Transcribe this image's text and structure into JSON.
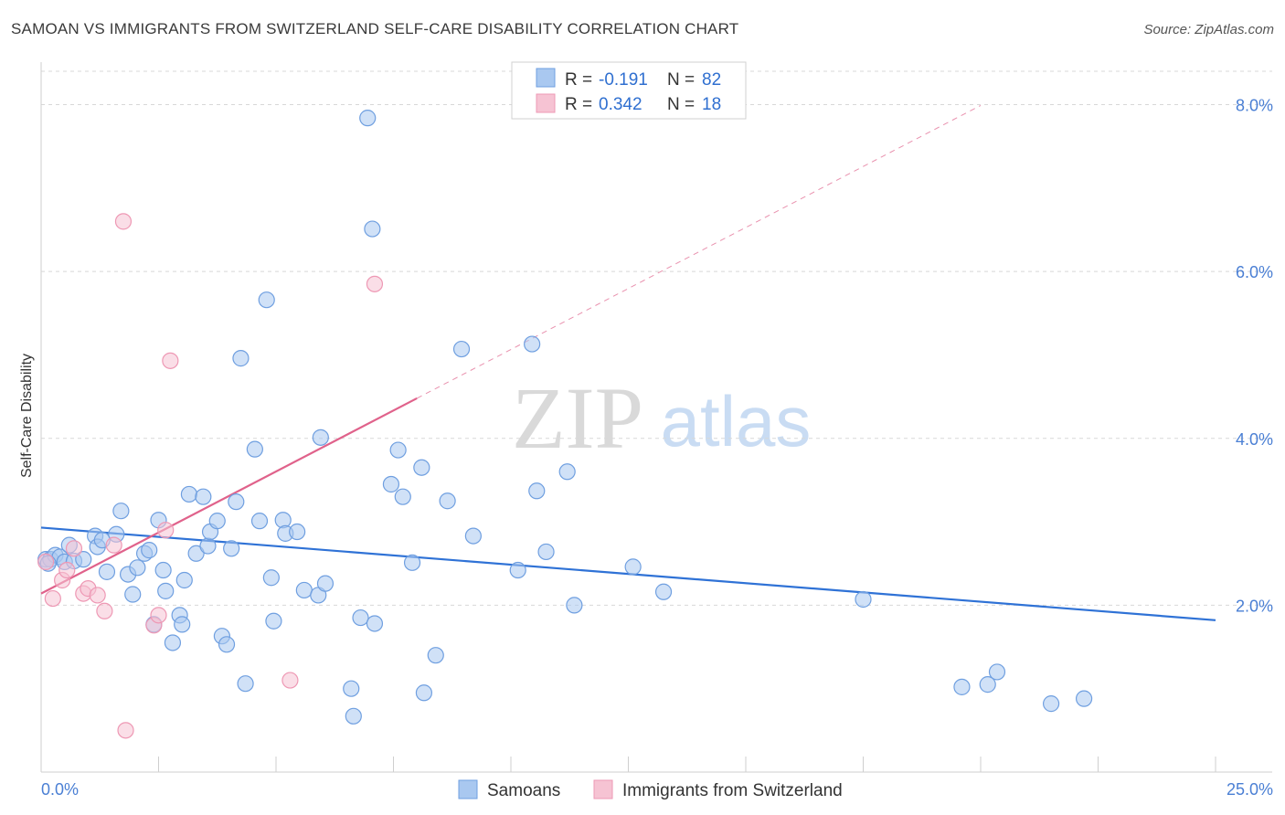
{
  "title": "SAMOAN VS IMMIGRANTS FROM SWITZERLAND SELF-CARE DISABILITY CORRELATION CHART",
  "source": "Source: ZipAtlas.com",
  "watermark": {
    "zip": "ZIP",
    "atlas": "atlas"
  },
  "colors": {
    "samoans_fill": "#a9c8f0",
    "samoans_stroke": "#6f9fe0",
    "samoans_line": "#2f72d6",
    "swiss_fill": "#f6c3d3",
    "swiss_stroke": "#ee98b4",
    "swiss_line": "#e0628b",
    "tick_label": "#4a7fd4",
    "grid": "#d8d8d8"
  },
  "legend": {
    "rows": [
      {
        "r_label": "R =",
        "r_value": "-0.191",
        "n_label": "N =",
        "n_value": "82"
      },
      {
        "r_label": "R =",
        "r_value": "0.342",
        "n_label": "N =",
        "n_value": "18"
      }
    ]
  },
  "chart_data": {
    "type": "scatter",
    "title": "SAMOAN VS IMMIGRANTS FROM SWITZERLAND SELF-CARE DISABILITY CORRELATION CHART",
    "xlabel": "",
    "ylabel": "Self-Care Disability",
    "xlim": [
      0,
      25
    ],
    "ylim": [
      0,
      8.4
    ],
    "x_tick_labels": [
      "0.0%",
      "25.0%"
    ],
    "y_ticks": [
      2,
      4,
      6,
      8
    ],
    "y_tick_labels": [
      "2.0%",
      "4.0%",
      "6.0%",
      "8.0%"
    ],
    "grid": true,
    "legend_position": "top-center",
    "series": [
      {
        "name": "Samoans",
        "points": [
          [
            0.1,
            2.55
          ],
          [
            0.2,
            2.55
          ],
          [
            0.3,
            2.6
          ],
          [
            0.4,
            2.58
          ],
          [
            0.5,
            2.52
          ],
          [
            0.6,
            2.72
          ],
          [
            0.7,
            2.53
          ],
          [
            0.9,
            2.55
          ],
          [
            1.15,
            2.83
          ],
          [
            1.2,
            2.7
          ],
          [
            1.4,
            2.4
          ],
          [
            1.6,
            2.85
          ],
          [
            1.7,
            3.13
          ],
          [
            1.85,
            2.37
          ],
          [
            1.95,
            2.13
          ],
          [
            2.05,
            2.45
          ],
          [
            2.2,
            2.62
          ],
          [
            2.3,
            2.66
          ],
          [
            2.4,
            1.77
          ],
          [
            2.5,
            3.02
          ],
          [
            2.6,
            2.42
          ],
          [
            2.65,
            2.17
          ],
          [
            2.8,
            1.55
          ],
          [
            2.95,
            1.88
          ],
          [
            3.05,
            2.3
          ],
          [
            3.15,
            3.33
          ],
          [
            3.3,
            2.62
          ],
          [
            3.45,
            3.3
          ],
          [
            3.55,
            2.71
          ],
          [
            3.6,
            2.88
          ],
          [
            3.75,
            3.01
          ],
          [
            3.85,
            1.63
          ],
          [
            3.95,
            1.53
          ],
          [
            4.05,
            2.68
          ],
          [
            4.15,
            3.24
          ],
          [
            4.25,
            4.96
          ],
          [
            4.35,
            1.06
          ],
          [
            4.55,
            3.87
          ],
          [
            4.65,
            3.01
          ],
          [
            4.8,
            5.66
          ],
          [
            4.9,
            2.33
          ],
          [
            4.95,
            1.81
          ],
          [
            5.15,
            3.02
          ],
          [
            5.2,
            2.86
          ],
          [
            5.45,
            2.88
          ],
          [
            5.6,
            2.18
          ],
          [
            5.9,
            2.12
          ],
          [
            5.95,
            4.01
          ],
          [
            6.05,
            2.26
          ],
          [
            6.6,
            1.0
          ],
          [
            6.65,
            0.67
          ],
          [
            6.8,
            1.85
          ],
          [
            6.95,
            7.84
          ],
          [
            7.05,
            6.51
          ],
          [
            7.1,
            1.78
          ],
          [
            7.45,
            3.45
          ],
          [
            7.6,
            3.86
          ],
          [
            7.7,
            3.3
          ],
          [
            7.9,
            2.51
          ],
          [
            8.1,
            3.65
          ],
          [
            8.15,
            0.95
          ],
          [
            8.4,
            1.4
          ],
          [
            8.65,
            3.25
          ],
          [
            8.95,
            5.07
          ],
          [
            9.2,
            2.83
          ],
          [
            10.15,
            2.42
          ],
          [
            10.45,
            5.13
          ],
          [
            10.55,
            3.37
          ],
          [
            10.75,
            2.64
          ],
          [
            11.2,
            3.6
          ],
          [
            11.35,
            2.0
          ],
          [
            12.6,
            2.46
          ],
          [
            13.25,
            2.16
          ],
          [
            17.5,
            2.07
          ],
          [
            19.6,
            1.02
          ],
          [
            20.15,
            1.05
          ],
          [
            20.35,
            1.2
          ],
          [
            21.5,
            0.82
          ],
          [
            22.2,
            0.88
          ],
          [
            0.15,
            2.5
          ],
          [
            1.3,
            2.78
          ],
          [
            3.0,
            1.77
          ]
        ]
      },
      {
        "name": "Immigrants from Switzerland",
        "points": [
          [
            0.1,
            2.52
          ],
          [
            0.25,
            2.08
          ],
          [
            0.45,
            2.3
          ],
          [
            0.55,
            2.42
          ],
          [
            0.7,
            2.68
          ],
          [
            0.9,
            2.14
          ],
          [
            1.0,
            2.2
          ],
          [
            1.2,
            2.12
          ],
          [
            1.35,
            1.93
          ],
          [
            1.55,
            2.72
          ],
          [
            1.75,
            6.6
          ],
          [
            1.8,
            0.5
          ],
          [
            2.4,
            1.76
          ],
          [
            2.5,
            1.88
          ],
          [
            2.65,
            2.9
          ],
          [
            2.75,
            4.93
          ],
          [
            5.3,
            1.1
          ],
          [
            7.1,
            5.85
          ]
        ]
      }
    ],
    "trend_lines": [
      {
        "series": "Samoans",
        "x": [
          0,
          25
        ],
        "y": [
          2.93,
          1.82
        ],
        "style": "solid"
      },
      {
        "series": "Immigrants from Switzerland",
        "x": [
          0,
          8.0
        ],
        "y": [
          2.14,
          4.48
        ],
        "style": "solid"
      },
      {
        "series": "Immigrants from Switzerland",
        "x": [
          8.0,
          20.0
        ],
        "y": [
          4.48,
          7.99
        ],
        "style": "dashed"
      }
    ]
  },
  "bottom_legend": {
    "items": [
      "Samoans",
      "Immigrants from Switzerland"
    ]
  }
}
